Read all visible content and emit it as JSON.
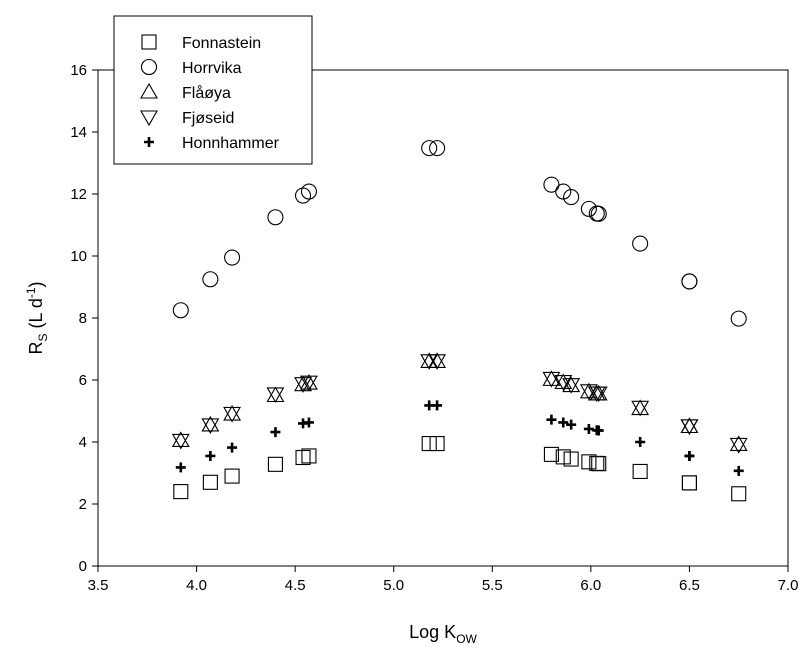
{
  "chart_data": {
    "type": "scatter",
    "x_label": {
      "base": "Log K",
      "subscript": "OW"
    },
    "y_label": {
      "base": "R",
      "subscript": "S",
      "units_open": " (L d",
      "superscript": "-1",
      "units_close": ")"
    },
    "xlim": [
      3.5,
      7.0
    ],
    "ylim": [
      0,
      16
    ],
    "x_ticks": [
      "3.5",
      "4.0",
      "4.5",
      "5.0",
      "5.5",
      "6.0",
      "6.5",
      "7.0"
    ],
    "y_ticks": [
      "0",
      "2",
      "4",
      "6",
      "8",
      "10",
      "12",
      "14",
      "16"
    ],
    "grid": false,
    "legend_position": "top-left",
    "x": [
      3.92,
      4.07,
      4.18,
      4.4,
      4.54,
      4.57,
      5.18,
      5.22,
      5.8,
      5.86,
      5.9,
      5.99,
      6.03,
      6.04,
      6.25,
      6.5,
      6.5,
      6.75
    ],
    "series": [
      {
        "name": "Fonnastein",
        "marker": "square",
        "values": [
          2.4,
          2.7,
          2.9,
          3.28,
          3.5,
          3.55,
          3.95,
          3.95,
          3.6,
          3.52,
          3.45,
          3.36,
          3.31,
          3.3,
          3.05,
          2.68,
          2.68,
          2.33
        ]
      },
      {
        "name": "Horrvika",
        "marker": "circle",
        "values": [
          8.25,
          9.25,
          9.95,
          11.25,
          11.95,
          12.08,
          13.48,
          13.48,
          12.3,
          12.08,
          11.9,
          11.52,
          11.37,
          11.36,
          10.4,
          9.18,
          9.18,
          7.98
        ]
      },
      {
        "name": "Flåøya",
        "marker": "triangle-up",
        "values": [
          4.05,
          4.55,
          4.9,
          5.5,
          5.85,
          5.9,
          6.6,
          6.6,
          6.02,
          5.92,
          5.82,
          5.62,
          5.55,
          5.55,
          5.08,
          4.5,
          4.5,
          3.92
        ]
      },
      {
        "name": "Fjøseid",
        "marker": "triangle-down",
        "values": [
          4.05,
          4.55,
          4.92,
          5.55,
          5.88,
          5.93,
          6.62,
          6.62,
          6.05,
          5.95,
          5.85,
          5.65,
          5.58,
          5.58,
          5.12,
          4.52,
          4.52,
          3.92
        ]
      },
      {
        "name": "Honnhammer",
        "marker": "plus",
        "values": [
          3.18,
          3.55,
          3.82,
          4.32,
          4.6,
          4.63,
          5.18,
          5.18,
          4.72,
          4.63,
          4.56,
          4.42,
          4.38,
          4.37,
          4.0,
          3.55,
          3.55,
          3.07
        ]
      }
    ]
  }
}
